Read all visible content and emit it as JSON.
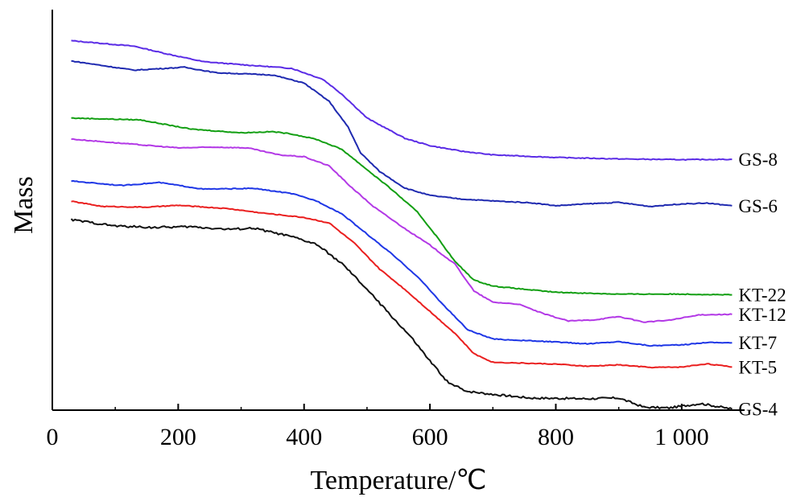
{
  "chart_data": {
    "type": "line",
    "xlabel": "Temperature/℃",
    "ylabel": "Mass",
    "xlim": [
      0,
      1100
    ],
    "ylim": [
      0,
      100
    ],
    "xticks": [
      0,
      200,
      400,
      600,
      800,
      1000
    ],
    "xtick_labels": [
      "0",
      "200",
      "400",
      "600",
      "800",
      "1 000"
    ],
    "y_tick_labels": "none",
    "grid": false,
    "legend": "inline labels at right end of each curve",
    "series": [
      {
        "name": "GS-8",
        "color": "#5b2ce6",
        "points": [
          [
            30,
            95.5
          ],
          [
            130,
            94
          ],
          [
            180,
            92
          ],
          [
            240,
            89.8
          ],
          [
            300,
            89
          ],
          [
            380,
            88
          ],
          [
            430,
            85
          ],
          [
            460,
            81
          ],
          [
            500,
            74.5
          ],
          [
            560,
            69
          ],
          [
            600,
            67
          ],
          [
            650,
            65.5
          ],
          [
            700,
            64.5
          ],
          [
            800,
            63.8
          ],
          [
            900,
            63.4
          ],
          [
            1000,
            63.2
          ],
          [
            1080,
            63.3
          ]
        ]
      },
      {
        "name": "GS-6",
        "color": "#1f2ab0",
        "points": [
          [
            30,
            90
          ],
          [
            90,
            88.5
          ],
          [
            130,
            87.5
          ],
          [
            210,
            88.3
          ],
          [
            260,
            86.8
          ],
          [
            350,
            86.2
          ],
          [
            400,
            84
          ],
          [
            440,
            79
          ],
          [
            470,
            72
          ],
          [
            490,
            65
          ],
          [
            520,
            60
          ],
          [
            560,
            55.5
          ],
          [
            600,
            53.5
          ],
          [
            650,
            52.5
          ],
          [
            700,
            52
          ],
          [
            760,
            51.5
          ],
          [
            800,
            50.7
          ],
          [
            850,
            51.2
          ],
          [
            900,
            51.6
          ],
          [
            950,
            50.5
          ],
          [
            1000,
            51.2
          ],
          [
            1040,
            51.4
          ],
          [
            1080,
            50.7
          ]
        ]
      },
      {
        "name": "KT-22",
        "color": "#139f13",
        "points": [
          [
            30,
            74.5
          ],
          [
            140,
            74
          ],
          [
            220,
            71.5
          ],
          [
            300,
            70.5
          ],
          [
            350,
            70.8
          ],
          [
            380,
            70.2
          ],
          [
            420,
            68.7
          ],
          [
            460,
            66
          ],
          [
            500,
            60.5
          ],
          [
            540,
            55
          ],
          [
            580,
            49
          ],
          [
            610,
            42.5
          ],
          [
            640,
            35.5
          ],
          [
            670,
            30.5
          ],
          [
            700,
            28.9
          ],
          [
            750,
            28
          ],
          [
            800,
            27.2
          ],
          [
            900,
            26.7
          ],
          [
            1000,
            26.7
          ],
          [
            1080,
            26.5
          ]
        ]
      },
      {
        "name": "KT-12",
        "color": "#b339e6",
        "points": [
          [
            30,
            68.8
          ],
          [
            120,
            67.5
          ],
          [
            200,
            66.4
          ],
          [
            260,
            66.6
          ],
          [
            310,
            66.4
          ],
          [
            360,
            64.5
          ],
          [
            400,
            64
          ],
          [
            440,
            61.5
          ],
          [
            470,
            56.5
          ],
          [
            510,
            50.5
          ],
          [
            560,
            44.5
          ],
          [
            600,
            40
          ],
          [
            640,
            34.8
          ],
          [
            670,
            27.5
          ],
          [
            700,
            24.5
          ],
          [
            740,
            24
          ],
          [
            780,
            21.4
          ],
          [
            820,
            19.4
          ],
          [
            860,
            19.7
          ],
          [
            900,
            20.6
          ],
          [
            940,
            19.1
          ],
          [
            980,
            19.6
          ],
          [
            1030,
            21.1
          ],
          [
            1080,
            21.2
          ]
        ]
      },
      {
        "name": "KT-7",
        "color": "#1f37e6",
        "points": [
          [
            30,
            57.4
          ],
          [
            110,
            56.2
          ],
          [
            170,
            57
          ],
          [
            240,
            55.2
          ],
          [
            320,
            55.4
          ],
          [
            380,
            54
          ],
          [
            420,
            52
          ],
          [
            460,
            48.5
          ],
          [
            500,
            43
          ],
          [
            540,
            37.5
          ],
          [
            580,
            31.5
          ],
          [
            620,
            24
          ],
          [
            660,
            17
          ],
          [
            700,
            14.5
          ],
          [
            800,
            13.7
          ],
          [
            850,
            13.2
          ],
          [
            900,
            13.8
          ],
          [
            950,
            12.7
          ],
          [
            1000,
            12.9
          ],
          [
            1040,
            13.6
          ],
          [
            1080,
            13.5
          ]
        ]
      },
      {
        "name": "KT-5",
        "color": "#ea1f1f",
        "points": [
          [
            30,
            51.9
          ],
          [
            80,
            50.5
          ],
          [
            150,
            50.3
          ],
          [
            200,
            50.8
          ],
          [
            280,
            49.9
          ],
          [
            330,
            48.8
          ],
          [
            400,
            47.5
          ],
          [
            440,
            46
          ],
          [
            480,
            40.5
          ],
          [
            520,
            33.5
          ],
          [
            560,
            28
          ],
          [
            600,
            22
          ],
          [
            640,
            16
          ],
          [
            670,
            10.5
          ],
          [
            700,
            8.2
          ],
          [
            800,
            7.7
          ],
          [
            850,
            7.1
          ],
          [
            900,
            7.5
          ],
          [
            950,
            6.8
          ],
          [
            1000,
            6.9
          ],
          [
            1040,
            7.8
          ],
          [
            1080,
            6.9
          ]
        ]
      },
      {
        "name": "GS-4",
        "color": "#111111",
        "points": [
          [
            30,
            46.9
          ],
          [
            100,
            45.2
          ],
          [
            160,
            44.8
          ],
          [
            220,
            45
          ],
          [
            280,
            44.3
          ],
          [
            320,
            44.6
          ],
          [
            380,
            42.3
          ],
          [
            420,
            40.2
          ],
          [
            460,
            35
          ],
          [
            500,
            28
          ],
          [
            540,
            20.5
          ],
          [
            570,
            15
          ],
          [
            600,
            8.5
          ],
          [
            630,
            2.5
          ],
          [
            660,
            0.3
          ],
          [
            700,
            -0.5
          ],
          [
            760,
            -1.5
          ],
          [
            850,
            -1.7
          ],
          [
            900,
            -1.5
          ],
          [
            940,
            -4
          ],
          [
            980,
            -4.2
          ],
          [
            1030,
            -3
          ],
          [
            1080,
            -4.5
          ]
        ]
      }
    ]
  }
}
